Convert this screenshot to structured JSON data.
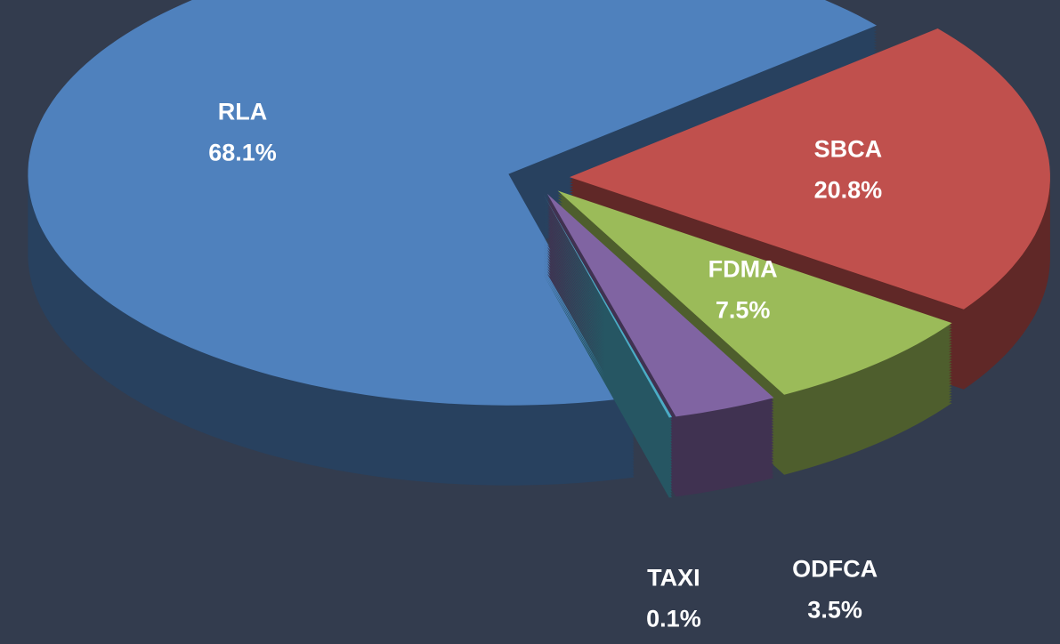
{
  "chart_data": {
    "type": "pie",
    "categories": [
      "SBCA",
      "FDMA",
      "ODFCA",
      "TAXI",
      "RLA"
    ],
    "values": [
      20.8,
      7.5,
      3.5,
      0.1,
      68.1
    ],
    "value_labels": [
      "20.8%",
      "7.5%",
      "3.5%",
      "0.1%",
      "68.1%"
    ],
    "colors": [
      "#c0504d",
      "#9bbb59",
      "#8064a2",
      "#4bacc6",
      "#4f81bd"
    ]
  }
}
